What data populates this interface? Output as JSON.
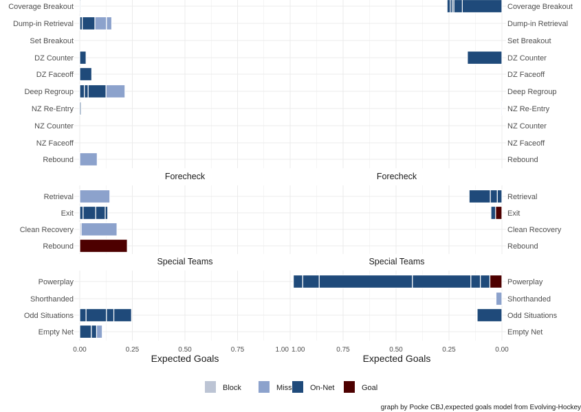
{
  "chart_data": {
    "type": "bar",
    "orientation": "horizontal-stacked",
    "xlabel": "Expected Goals",
    "xticks": [
      "0.00",
      "0.25",
      "0.50",
      "0.75",
      "1.00"
    ],
    "xlim": [
      0,
      1
    ],
    "grid": true,
    "legend": {
      "position": "bottom",
      "entries": [
        {
          "name": "Block",
          "color": "#bcc4d4"
        },
        {
          "name": "Miss",
          "color": "#8ca2cc"
        },
        {
          "name": "On-Net",
          "color": "#1f4a7a"
        },
        {
          "name": "Goal",
          "color": "#4d0000"
        }
      ]
    },
    "caption": "graph by Pocke CBJ,expected goals model from Evolving-Hockey",
    "facets": [
      {
        "strip": "",
        "rows": [
          {
            "label": "Coverage Breakout",
            "left": [
              [
                "On-Net",
                0.004
              ]
            ],
            "right": [
              [
                "On-Net",
                0.187
              ],
              [
                "On-Net",
                0.04
              ],
              [
                "On-Net",
                0.007
              ],
              [
                "On-Net",
                0.01
              ],
              [
                "On-Net",
                0.015
              ]
            ]
          },
          {
            "label": "Dump-in Retrieval",
            "left": [
              [
                "On-Net",
                0.012
              ],
              [
                "On-Net",
                0.06
              ],
              [
                "Miss",
                0.055
              ],
              [
                "Miss",
                0.025
              ]
            ],
            "right": []
          },
          {
            "label": "Set Breakout",
            "left": [],
            "right": []
          },
          {
            "label": "DZ Counter",
            "left": [
              [
                "On-Net",
                0.03
              ]
            ],
            "right": [
              [
                "On-Net",
                0.163
              ]
            ]
          },
          {
            "label": "DZ Faceoff",
            "left": [
              [
                "On-Net",
                0.057
              ]
            ],
            "right": []
          },
          {
            "label": "Deep Regroup",
            "left": [
              [
                "On-Net",
                0.022
              ],
              [
                "On-Net",
                0.018
              ],
              [
                "On-Net",
                0.085
              ],
              [
                "Miss",
                0.09
              ]
            ],
            "right": []
          },
          {
            "label": "NZ Re-Entry",
            "left": [
              [
                "On-Net",
                0.006
              ]
            ],
            "right": [
              [
                "Miss",
                0.004
              ]
            ]
          },
          {
            "label": "NZ Counter",
            "left": [],
            "right": []
          },
          {
            "label": "NZ Faceoff",
            "left": [],
            "right": []
          },
          {
            "label": "Rebound",
            "left": [
              [
                "Miss",
                0.083
              ]
            ],
            "right": []
          }
        ]
      },
      {
        "strip": "Forecheck",
        "rows": [
          {
            "label": "Retrieval",
            "left": [
              [
                "Miss",
                0.143
              ]
            ],
            "right": [
              [
                "On-Net",
                0.022
              ],
              [
                "On-Net",
                0.033
              ],
              [
                "On-Net",
                0.1
              ]
            ]
          },
          {
            "label": "Exit",
            "left": [
              [
                "On-Net",
                0.016
              ],
              [
                "On-Net",
                0.06
              ],
              [
                "On-Net",
                0.045
              ],
              [
                "On-Net",
                0.012
              ]
            ],
            "right": [
              [
                "Goal",
                0.03
              ],
              [
                "On-Net",
                0.022
              ]
            ]
          },
          {
            "label": "Clean Recovery",
            "left": [
              [
                "Block",
                0.007
              ],
              [
                "Miss",
                0.17
              ]
            ],
            "right": []
          },
          {
            "label": "Rebound",
            "left": [
              [
                "Goal",
                0.226
              ]
            ],
            "right": []
          }
        ]
      },
      {
        "strip": "Special Teams",
        "rows": [
          {
            "label": "Powerplay",
            "left": [],
            "right": [
              [
                "Goal",
                0.057
              ],
              [
                "On-Net",
                0.045
              ],
              [
                "On-Net",
                0.045
              ],
              [
                "On-Net",
                0.276
              ],
              [
                "On-Net",
                0.44
              ],
              [
                "On-Net",
                0.078
              ],
              [
                "On-Net",
                0.044
              ]
            ]
          },
          {
            "label": "Shorthanded",
            "left": [],
            "right": [
              [
                "Miss",
                0.028
              ]
            ]
          },
          {
            "label": "Odd Situations",
            "left": [
              [
                "On-Net",
                0.03
              ],
              [
                "On-Net",
                0.097
              ],
              [
                "On-Net",
                0.035
              ],
              [
                "On-Net",
                0.084
              ]
            ],
            "right": [
              [
                "On-Net",
                0.117
              ]
            ]
          },
          {
            "label": "Empty Net",
            "left": [
              [
                "On-Net",
                0.055
              ],
              [
                "On-Net",
                0.025
              ],
              [
                "Miss",
                0.027
              ]
            ],
            "right": []
          }
        ]
      }
    ]
  }
}
